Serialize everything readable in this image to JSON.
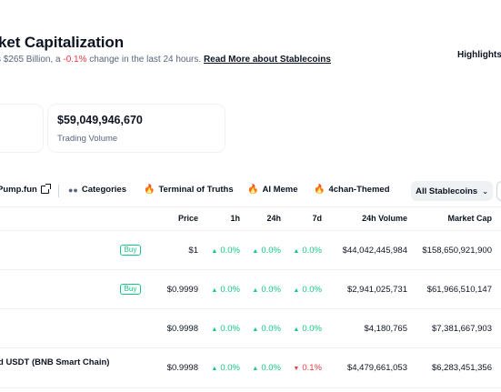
{
  "header": {
    "title": "ket Capitalization",
    "subtitle_pre": "s $265 Billion, a ",
    "subtitle_change": "-0.1%",
    "subtitle_post": " change in the last 24 hours. ",
    "subtitle_link": "Read More about Stablecoins",
    "highlights_label": "Highlights"
  },
  "stats": {
    "trading_volume_value": "$59,049,946,670",
    "trading_volume_label": "Trading Volume"
  },
  "filters": {
    "pumpfun": "Pump.fun",
    "categories": "Categories",
    "terminal": "Terminal of Truths",
    "ai_meme": "AI Meme",
    "fourchan": "4chan-Themed",
    "stablecoins": "All Stablecoins"
  },
  "table": {
    "headers": {
      "price": "Price",
      "h1": "1h",
      "h24": "24h",
      "d7": "7d",
      "volume": "24h Volume",
      "mcap": "Market Cap"
    },
    "rows": [
      {
        "name": "",
        "buy": "Buy",
        "price": "$1",
        "h1": "0.0%",
        "h1_dir": "up",
        "h24": "0.0%",
        "h24_dir": "up",
        "d7": "0.0%",
        "d7_dir": "up",
        "volume": "$44,042,445,984",
        "mcap": "$158,650,921,900"
      },
      {
        "name": "",
        "buy": "Buy",
        "price": "$0.9999",
        "h1": "0.0%",
        "h1_dir": "up",
        "h24": "0.0%",
        "h24_dir": "up",
        "d7": "0.0%",
        "d7_dir": "up",
        "volume": "$2,941,025,731",
        "mcap": "$61,966,510,147"
      },
      {
        "name": "",
        "buy": "",
        "price": "$0.9998",
        "h1": "0.0%",
        "h1_dir": "up",
        "h24": "0.0%",
        "h24_dir": "up",
        "d7": "0.0%",
        "d7_dir": "up",
        "volume": "$4,180,765",
        "mcap": "$7,381,667,903"
      },
      {
        "name": "d USDT (BNB Smart Chain)",
        "buy": "",
        "price": "$0.9998",
        "h1": "0.0%",
        "h1_dir": "up",
        "h24": "0.0%",
        "h24_dir": "up",
        "d7": "0.1%",
        "d7_dir": "down",
        "volume": "$4,479,661,053",
        "mcap": "$6,283,451,356"
      }
    ]
  },
  "colors": {
    "up": "#16c784",
    "down": "#ea3943",
    "accent_fire": "#f08a24"
  }
}
